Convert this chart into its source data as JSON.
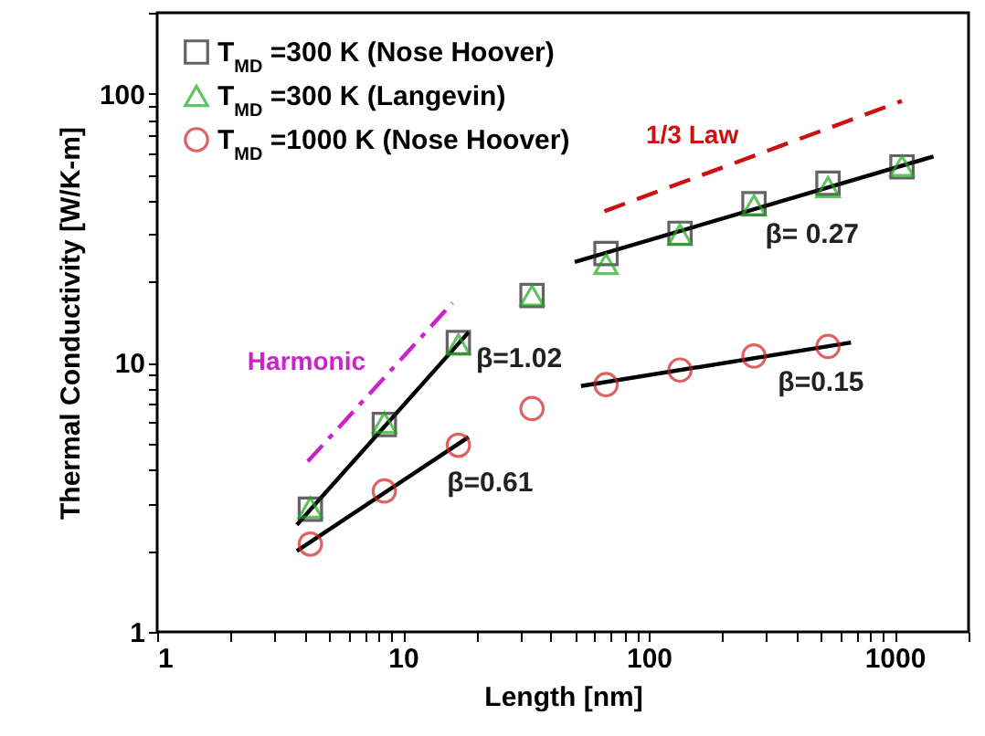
{
  "chart_data": {
    "type": "scatter",
    "xlabel": "Length [nm]",
    "ylabel": "Thermal Conductivity [W/K-m]",
    "log": "xy",
    "grid": false,
    "legend": "top left",
    "xlim": [
      1,
      2000
    ],
    "ylim": [
      1,
      200
    ],
    "xticks": [
      1,
      {
        "value": 2,
        "label": null
      },
      {
        "value": 3,
        "label": null
      },
      {
        "value": 4,
        "label": null
      },
      {
        "value": 5,
        "label": null
      },
      {
        "value": 6,
        "label": null
      },
      {
        "value": 7,
        "label": null
      },
      {
        "value": 8,
        "label": null
      },
      {
        "value": 9,
        "label": null
      },
      10,
      {
        "value": 20,
        "label": null
      },
      {
        "value": 30,
        "label": null
      },
      {
        "value": 40,
        "label": null
      },
      {
        "value": 50,
        "label": null
      },
      {
        "value": 60,
        "label": null
      },
      {
        "value": 70,
        "label": null
      },
      {
        "value": 80,
        "label": null
      },
      {
        "value": 90,
        "label": null
      },
      100,
      {
        "value": 200,
        "label": null
      },
      {
        "value": 300,
        "label": null
      },
      {
        "value": 400,
        "label": null
      },
      {
        "value": 500,
        "label": null
      },
      {
        "value": 600,
        "label": null
      },
      {
        "value": 700,
        "label": null
      },
      {
        "value": 800,
        "label": null
      },
      {
        "value": 900,
        "label": null
      },
      1000,
      {
        "value": 2000,
        "label": null
      }
    ],
    "yticks": [
      1,
      {
        "value": 2,
        "label": null
      },
      {
        "value": 3,
        "label": null
      },
      {
        "value": 4,
        "label": null
      },
      {
        "value": 5,
        "label": null
      },
      {
        "value": 6,
        "label": null
      },
      {
        "value": 7,
        "label": null
      },
      {
        "value": 8,
        "label": null
      },
      {
        "value": 9,
        "label": null
      },
      10,
      {
        "value": 20,
        "label": null
      },
      {
        "value": 30,
        "label": null
      },
      {
        "value": 40,
        "label": null
      },
      {
        "value": 50,
        "label": null
      },
      {
        "value": 60,
        "label": null
      },
      {
        "value": 70,
        "label": null
      },
      {
        "value": 80,
        "label": null
      },
      {
        "value": 90,
        "label": null
      },
      100,
      {
        "value": 200,
        "label": null
      }
    ],
    "series": [
      {
        "name": "T$_{MD}$ =300 K (Nose Hoover)",
        "marker": "square",
        "color": "#222222",
        "x": [
          4.2,
          8.4,
          16.8,
          33.5,
          67,
          134,
          268,
          536,
          1072
        ],
        "values": [
          2.86,
          5.9,
          11.9,
          17.8,
          25.5,
          30.3,
          39,
          46.5,
          53.5
        ]
      },
      {
        "name": "T$_{MD}$ =300 K (Langevin)",
        "marker": "triangle",
        "color": "#22aa22",
        "x": [
          4.2,
          8.4,
          16.8,
          33.5,
          67,
          134,
          268,
          536,
          1072
        ],
        "values": [
          2.9,
          6.0,
          11.7,
          17.8,
          23.3,
          30,
          38.5,
          45,
          54
        ]
      },
      {
        "name": "T$_{MD}$ =1000 K (Nose Hoover)",
        "marker": "circle",
        "color": "#cc2222",
        "x": [
          4.2,
          8.4,
          16.8,
          33.5,
          67,
          134,
          268,
          536
        ],
        "values": [
          2.12,
          3.34,
          4.94,
          6.76,
          8.3,
          9.4,
          10.6,
          11.5
        ]
      },
      {
        "type": "line",
        "line_style": "solid",
        "color": "#000000",
        "x": [
          3.7,
          18.5
        ],
        "values": [
          2.5,
          13
        ]
      },
      {
        "type": "line",
        "line_style": "solid",
        "color": "#000000",
        "x": [
          3.7,
          18.5
        ],
        "values": [
          2.0,
          5.3
        ]
      },
      {
        "type": "line",
        "line_style": "solid",
        "color": "#000000",
        "x": [
          50,
          1440
        ],
        "values": [
          23.7,
          58.5
        ]
      },
      {
        "type": "line",
        "line_style": "solid",
        "color": "#000000",
        "x": [
          53,
          665
        ],
        "values": [
          8.2,
          11.9
        ]
      },
      {
        "name": "Harmonic",
        "type": "line",
        "line_style": "dashdot",
        "color": "#cc22cc",
        "x": [
          4.1,
          15.9
        ],
        "values": [
          4.3,
          16.7
        ]
      },
      {
        "name": "1/3 Law",
        "type": "line",
        "line_style": "dashed",
        "color": "#cc1111",
        "x": [
          66,
          1070
        ],
        "values": [
          36.6,
          94
        ]
      }
    ],
    "annotations": [
      {
        "text": "β=1.02",
        "x": 18.5,
        "y": 13
      },
      {
        "text": "β=0.61",
        "x": 14.1,
        "y": 4.5
      },
      {
        "text": "β= 0.27",
        "x": 278,
        "y": 37.6
      },
      {
        "text": "β=0.15",
        "x": 313,
        "y": 10.6
      }
    ]
  }
}
